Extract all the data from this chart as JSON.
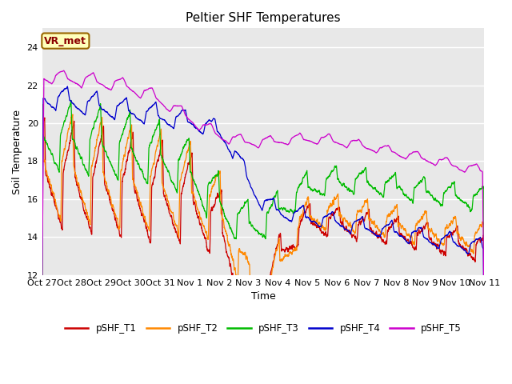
{
  "title": "Peltier SHF Temperatures",
  "xlabel": "Time",
  "ylabel": "Soil Temperature",
  "ylim": [
    12,
    25
  ],
  "yticks": [
    12,
    14,
    16,
    18,
    20,
    22,
    24
  ],
  "annotation_text": "VR_met",
  "annotation_color": "#8B0000",
  "annotation_bg": "#FFFFBB",
  "annotation_border": "#996600",
  "series": [
    {
      "label": "pSHF_T1",
      "color": "#CC0000"
    },
    {
      "label": "pSHF_T2",
      "color": "#FF8800"
    },
    {
      "label": "pSHF_T3",
      "color": "#00BB00"
    },
    {
      "label": "pSHF_T4",
      "color": "#0000CC"
    },
    {
      "label": "pSHF_T5",
      "color": "#CC00CC"
    }
  ],
  "bg_color": "#E8E8E8",
  "x_tick_labels": [
    "Oct 27",
    "Oct 28",
    "Oct 29",
    "Oct 30",
    "Oct 31",
    "Nov 1",
    "Nov 2",
    "Nov 3",
    "Nov 4",
    "Nov 5",
    "Nov 6",
    "Nov 7",
    "Nov 8",
    "Nov 9",
    "Nov 10",
    "Nov 11"
  ],
  "n_points": 3000,
  "seed": 17
}
